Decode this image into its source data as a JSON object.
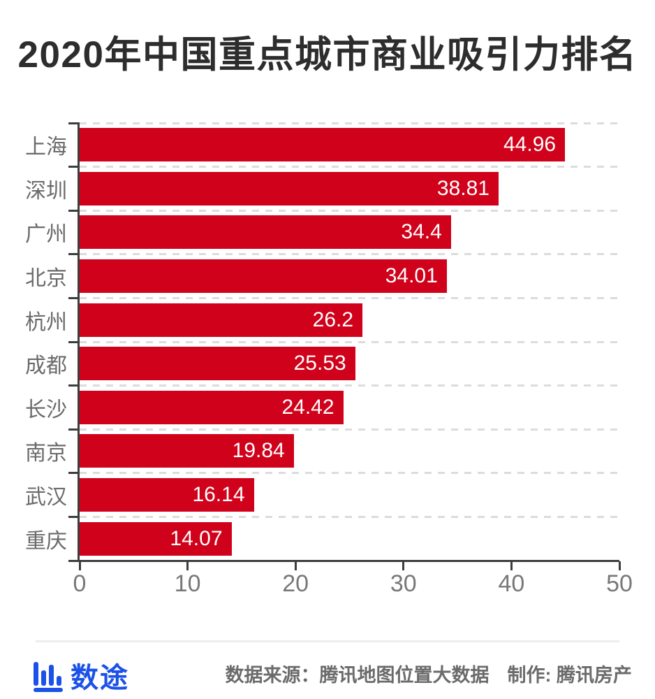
{
  "title": "2020年中国重点城市商业吸引力排名",
  "chart_data": {
    "type": "bar",
    "orientation": "horizontal",
    "title": "2020年中国重点城市商业吸引力排名",
    "categories": [
      "上海",
      "深圳",
      "广州",
      "北京",
      "杭州",
      "成都",
      "长沙",
      "南京",
      "武汉",
      "重庆"
    ],
    "values": [
      44.96,
      38.81,
      34.4,
      34.01,
      26.2,
      25.53,
      24.42,
      19.84,
      16.14,
      14.07
    ],
    "value_labels": [
      "44.96",
      "38.81",
      "34.4",
      "34.01",
      "26.2",
      "25.53",
      "24.42",
      "19.84",
      "16.14",
      "14.07"
    ],
    "xlabel": "",
    "ylabel": "",
    "xlim": [
      0,
      50
    ],
    "x_ticks": [
      0,
      10,
      20,
      30,
      40,
      50
    ],
    "grid": "dashed-horizontal-category-boundaries",
    "legend": "none",
    "bar_color": "#d0021b",
    "value_label_color": "#ffffff",
    "axis_color": "#3d3d3d",
    "gridline_color": "#dcdcdc",
    "category_label_color": "#6a6a6a",
    "tick_label_color": "#787878"
  },
  "footer": {
    "logo_text": "数途",
    "logo_color": "#1b51e8",
    "logo_icon": "bar-chart-icon",
    "source_text": "数据来源：腾讯地图位置大数据",
    "credit_text": "制作: 腾讯房产"
  },
  "colors": {
    "background": "#ffffff",
    "title": "#2d2d2d",
    "divider": "#ededed",
    "footer_text": "#6b6b6b"
  }
}
